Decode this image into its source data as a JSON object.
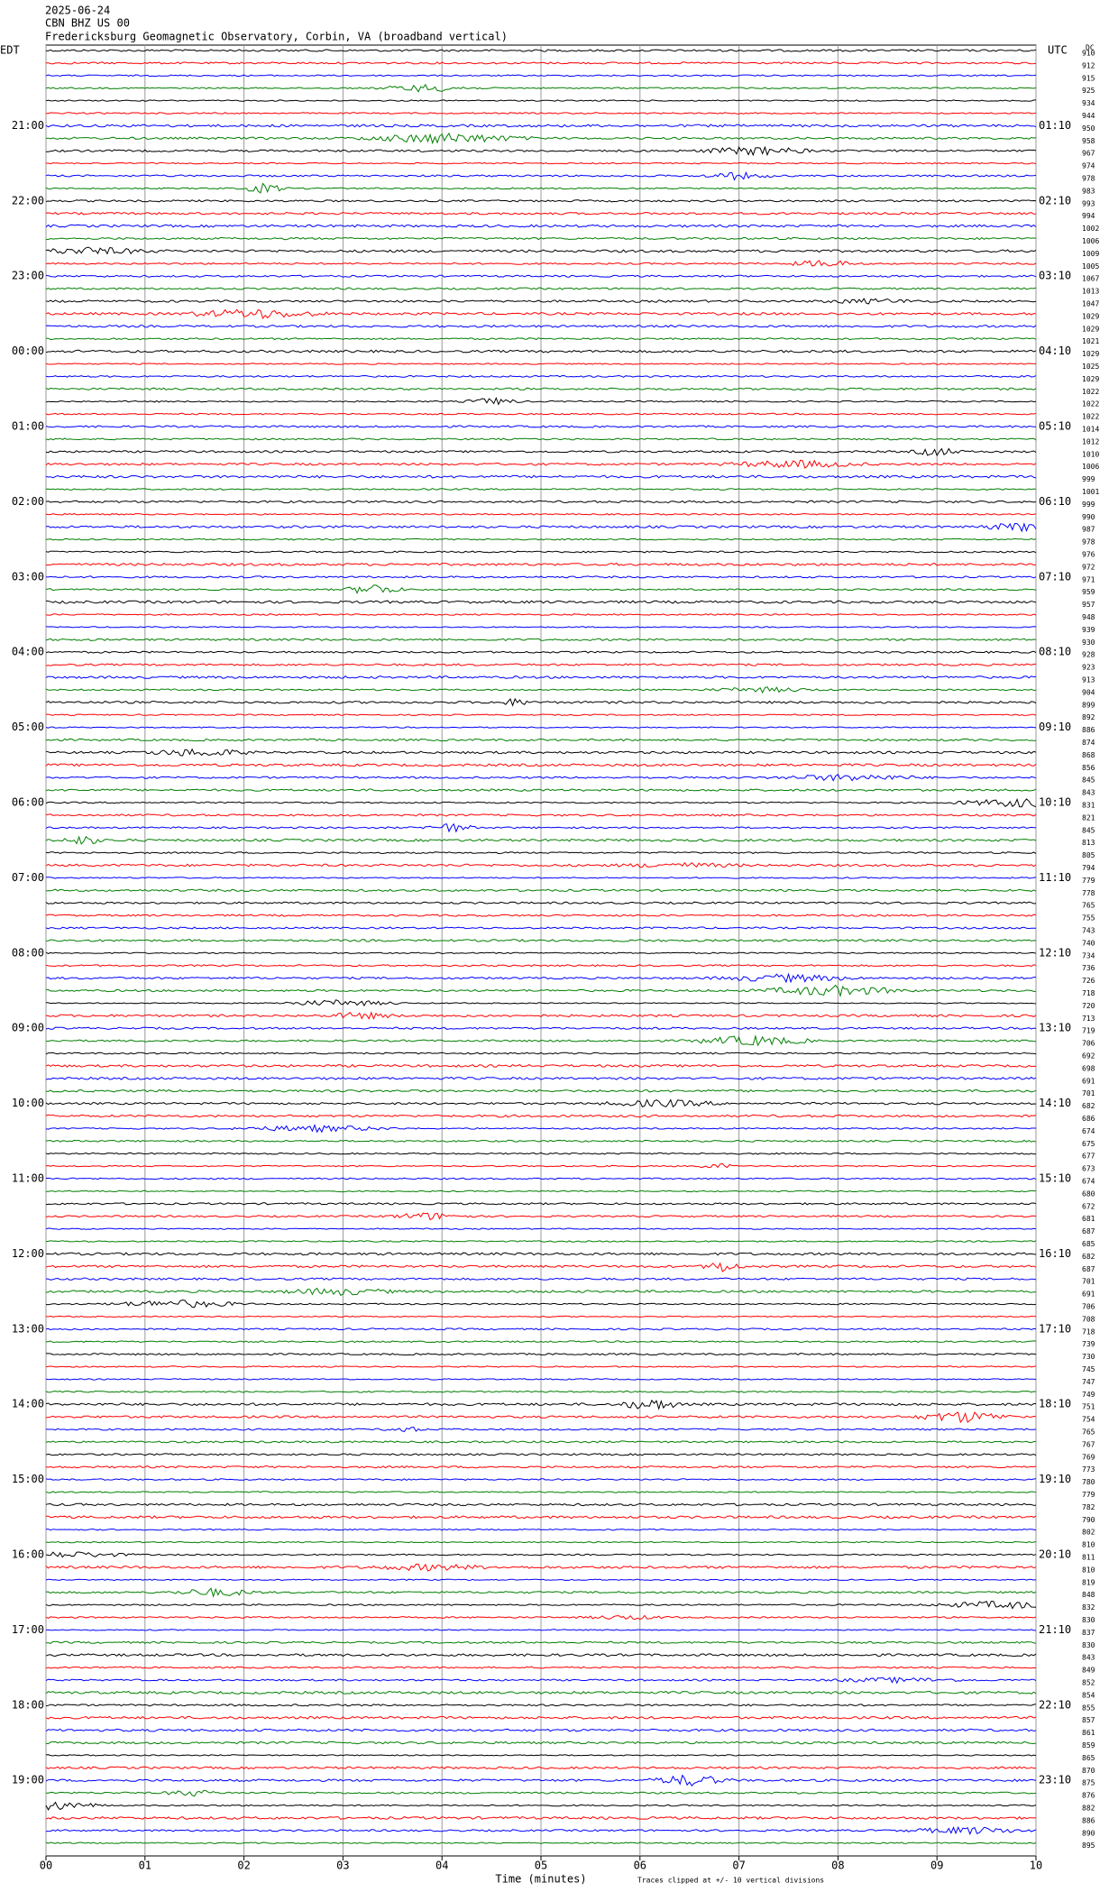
{
  "chart_data": {
    "type": "helicorder",
    "date": "2025-06-24",
    "station": "CBN BHZ US 00",
    "title": "Fredericksburg Geomagnetic Observatory, Corbin, VA (broadband vertical)",
    "left_zone": "EDT",
    "right_zone": "UTC",
    "dc_label": "DC",
    "left_labels": [
      "21:00",
      "22:00",
      "23:00",
      "00:00",
      "01:00",
      "02:00",
      "03:00",
      "04:00",
      "05:00",
      "06:00",
      "07:00",
      "08:00",
      "09:00",
      "10:00",
      "11:00",
      "12:00",
      "13:00",
      "14:00",
      "15:00",
      "16:00",
      "17:00",
      "18:00",
      "19:00"
    ],
    "right_labels": [
      "01:10",
      "02:10",
      "03:10",
      "04:10",
      "05:10",
      "06:10",
      "07:10",
      "08:10",
      "09:10",
      "10:10",
      "11:10",
      "12:10",
      "13:10",
      "14:10",
      "15:10",
      "16:10",
      "17:10",
      "18:10",
      "19:10",
      "20:10",
      "21:10",
      "22:10",
      "23:10"
    ],
    "dc_values": [
      910,
      912,
      915,
      925,
      934,
      944,
      950,
      958,
      967,
      974,
      978,
      983,
      993,
      994,
      1002,
      1006,
      1009,
      1005,
      1067,
      1013,
      1047,
      1029,
      1029,
      1021,
      1029,
      1025,
      1029,
      1022,
      1022,
      1022,
      1014,
      1012,
      1010,
      1006,
      999,
      1001,
      999,
      990,
      987,
      978,
      976,
      972,
      971,
      959,
      957,
      948,
      939,
      930,
      928,
      923,
      913,
      904,
      899,
      892,
      886,
      874,
      868,
      856,
      845,
      843,
      831,
      821,
      845,
      813,
      805,
      794,
      779,
      778,
      765,
      755,
      743,
      740,
      734,
      736,
      726,
      718,
      720,
      713,
      719,
      706,
      692,
      698,
      691,
      701,
      682,
      686,
      674,
      675,
      677,
      673,
      674,
      680,
      672,
      681,
      687,
      685,
      682,
      687,
      701,
      691,
      706,
      708,
      718,
      739,
      730,
      745,
      747,
      749,
      751,
      754,
      765,
      767,
      769,
      773,
      780,
      779,
      782,
      790,
      802,
      810,
      811,
      810,
      819,
      848,
      832,
      830,
      837,
      830,
      843,
      849,
      852,
      854,
      855,
      857,
      861,
      859,
      865,
      870,
      875,
      876,
      882,
      886,
      890,
      895
    ],
    "trace_colors": [
      "#000000",
      "#ff0000",
      "#0000ff",
      "#007f00"
    ],
    "xlabel": "Time (minutes)",
    "note": "Traces clipped at +/- 10 vertical divisions",
    "xlim": [
      0,
      10
    ],
    "xticks": [
      {
        "value": 0,
        "label": "00"
      },
      {
        "value": 1,
        "label": "01"
      },
      {
        "value": 2,
        "label": "02"
      },
      {
        "value": 3,
        "label": "03"
      },
      {
        "value": 4,
        "label": "04"
      },
      {
        "value": 5,
        "label": "05"
      },
      {
        "value": 6,
        "label": "06"
      },
      {
        "value": 7,
        "label": "07"
      },
      {
        "value": 8,
        "label": "08"
      },
      {
        "value": 9,
        "label": "09"
      },
      {
        "value": 10,
        "label": "10"
      }
    ],
    "grid": true
  }
}
